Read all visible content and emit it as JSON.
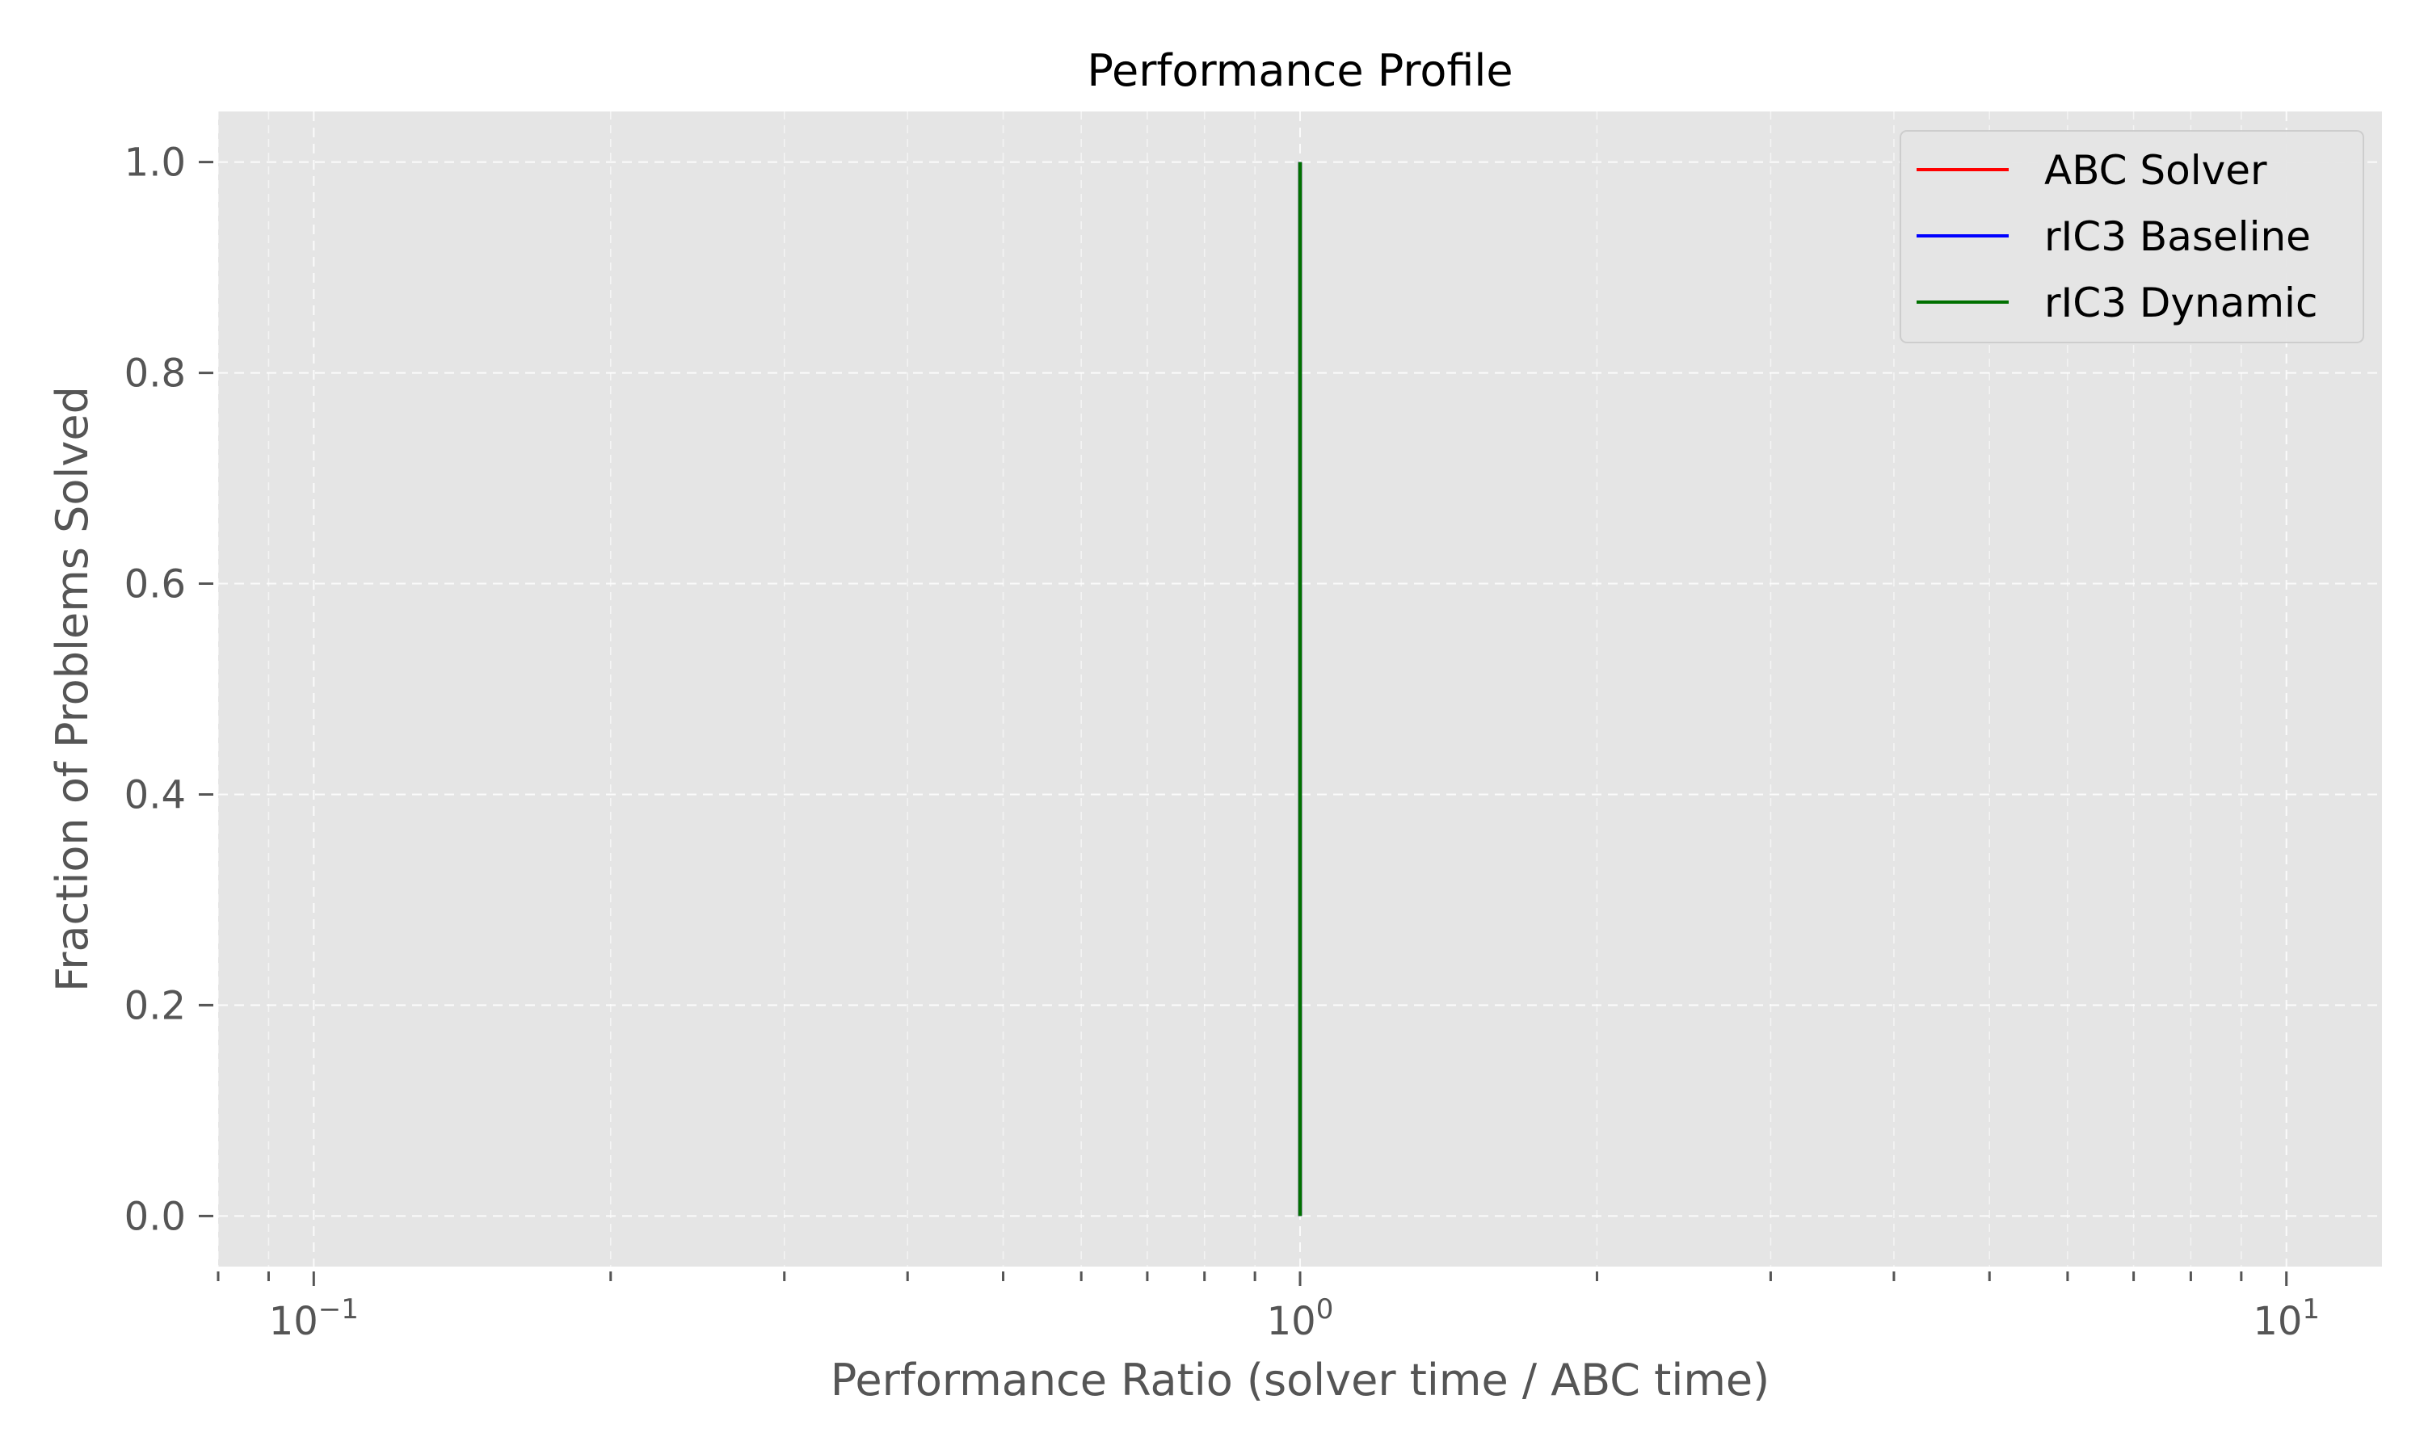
{
  "chart_data": {
    "type": "line",
    "title": "Performance Profile",
    "xlabel": "Performance Ratio (solver time / ABC time)",
    "ylabel": "Fraction of Problems Solved",
    "xscale": "log",
    "xlim": [
      0.08,
      12.5
    ],
    "ylim": [
      -0.048,
      1.048
    ],
    "x_major_ticks": [
      {
        "value": 0.1,
        "base": "10",
        "exp": "−1"
      },
      {
        "value": 1,
        "base": "10",
        "exp": "0"
      },
      {
        "value": 10,
        "base": "10",
        "exp": "1"
      }
    ],
    "y_ticks": [
      {
        "value": 0.0,
        "label": "0.0"
      },
      {
        "value": 0.2,
        "label": "0.2"
      },
      {
        "value": 0.4,
        "label": "0.4"
      },
      {
        "value": 0.6,
        "label": "0.6"
      },
      {
        "value": 0.8,
        "label": "0.8"
      },
      {
        "value": 1.0,
        "label": "1.0"
      }
    ],
    "grid": true,
    "legend_position": "top-right",
    "series": [
      {
        "name": "ABC Solver",
        "color": "#ff0000",
        "x": [
          1,
          1
        ],
        "y": [
          0,
          1
        ]
      },
      {
        "name": "rIC3 Baseline",
        "color": "#0000ff",
        "x": [
          1,
          1
        ],
        "y": [
          0,
          1
        ]
      },
      {
        "name": "rIC3 Dynamic",
        "color": "#007000",
        "x": [
          1,
          1
        ],
        "y": [
          0,
          1
        ]
      }
    ],
    "colors": {
      "plot_background": "#e5e5e5",
      "grid": "#ffffff",
      "axis_text": "#555555"
    }
  }
}
